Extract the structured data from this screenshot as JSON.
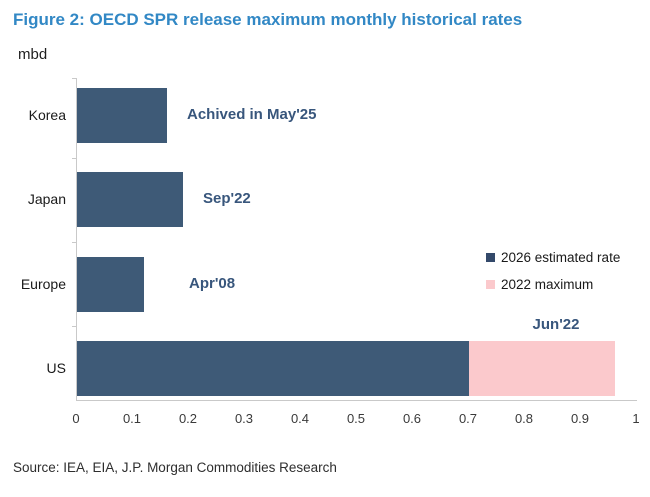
{
  "figure": {
    "title": "Figure 2: OECD SPR release maximum monthly historical rates",
    "unit": "mbd",
    "source": "Source: IEA, EIA, J.P. Morgan Commodities Research"
  },
  "colors": {
    "title_blue": "#3288c5",
    "bar_navy": "#3e5a77",
    "bar_pink": "#fbc9cc",
    "annotation_navy": "#38567c",
    "legend_marker_navy": "#33496a",
    "axis_gray": "#c9c9c9"
  },
  "chart_data": {
    "type": "bar",
    "orientation": "horizontal",
    "title": "Figure 2: OECD SPR release maximum monthly historical rates",
    "unit": "mbd",
    "categories": [
      "Korea",
      "Japan",
      "Europe",
      "US"
    ],
    "series": [
      {
        "name": "2026 estimated rate",
        "color": "#3e5a77",
        "values": [
          0.16,
          0.19,
          0.12,
          0.7
        ]
      },
      {
        "name": "2022 maximum",
        "color": "#fbc9cc",
        "stacked_on_previous": true,
        "values": [
          0,
          0,
          0,
          0.26
        ]
      }
    ],
    "annotations": [
      {
        "category": "Korea",
        "text": "Achived in May'25",
        "position": "right-of-bar"
      },
      {
        "category": "Japan",
        "text": "Sep'22",
        "position": "right-of-bar"
      },
      {
        "category": "Europe",
        "text": "Apr'08",
        "position": "right-of-bar"
      },
      {
        "category": "US",
        "text": "Jun'22",
        "position": "above-pink-segment"
      }
    ],
    "xlim": [
      0,
      1
    ],
    "xtick_labels": [
      "0",
      "0.1",
      "0.2",
      "0.3",
      "0.4",
      "0.5",
      "0.6",
      "0.7",
      "0.8",
      "0.9",
      "1"
    ],
    "grid": false,
    "legend_position": "right-middle",
    "notes": "US bar is stacked: 0.70 navy (2026 estimated rate) plus 0.26 pink reaching 0.96 total (2022 maximum, Jun'22)"
  }
}
